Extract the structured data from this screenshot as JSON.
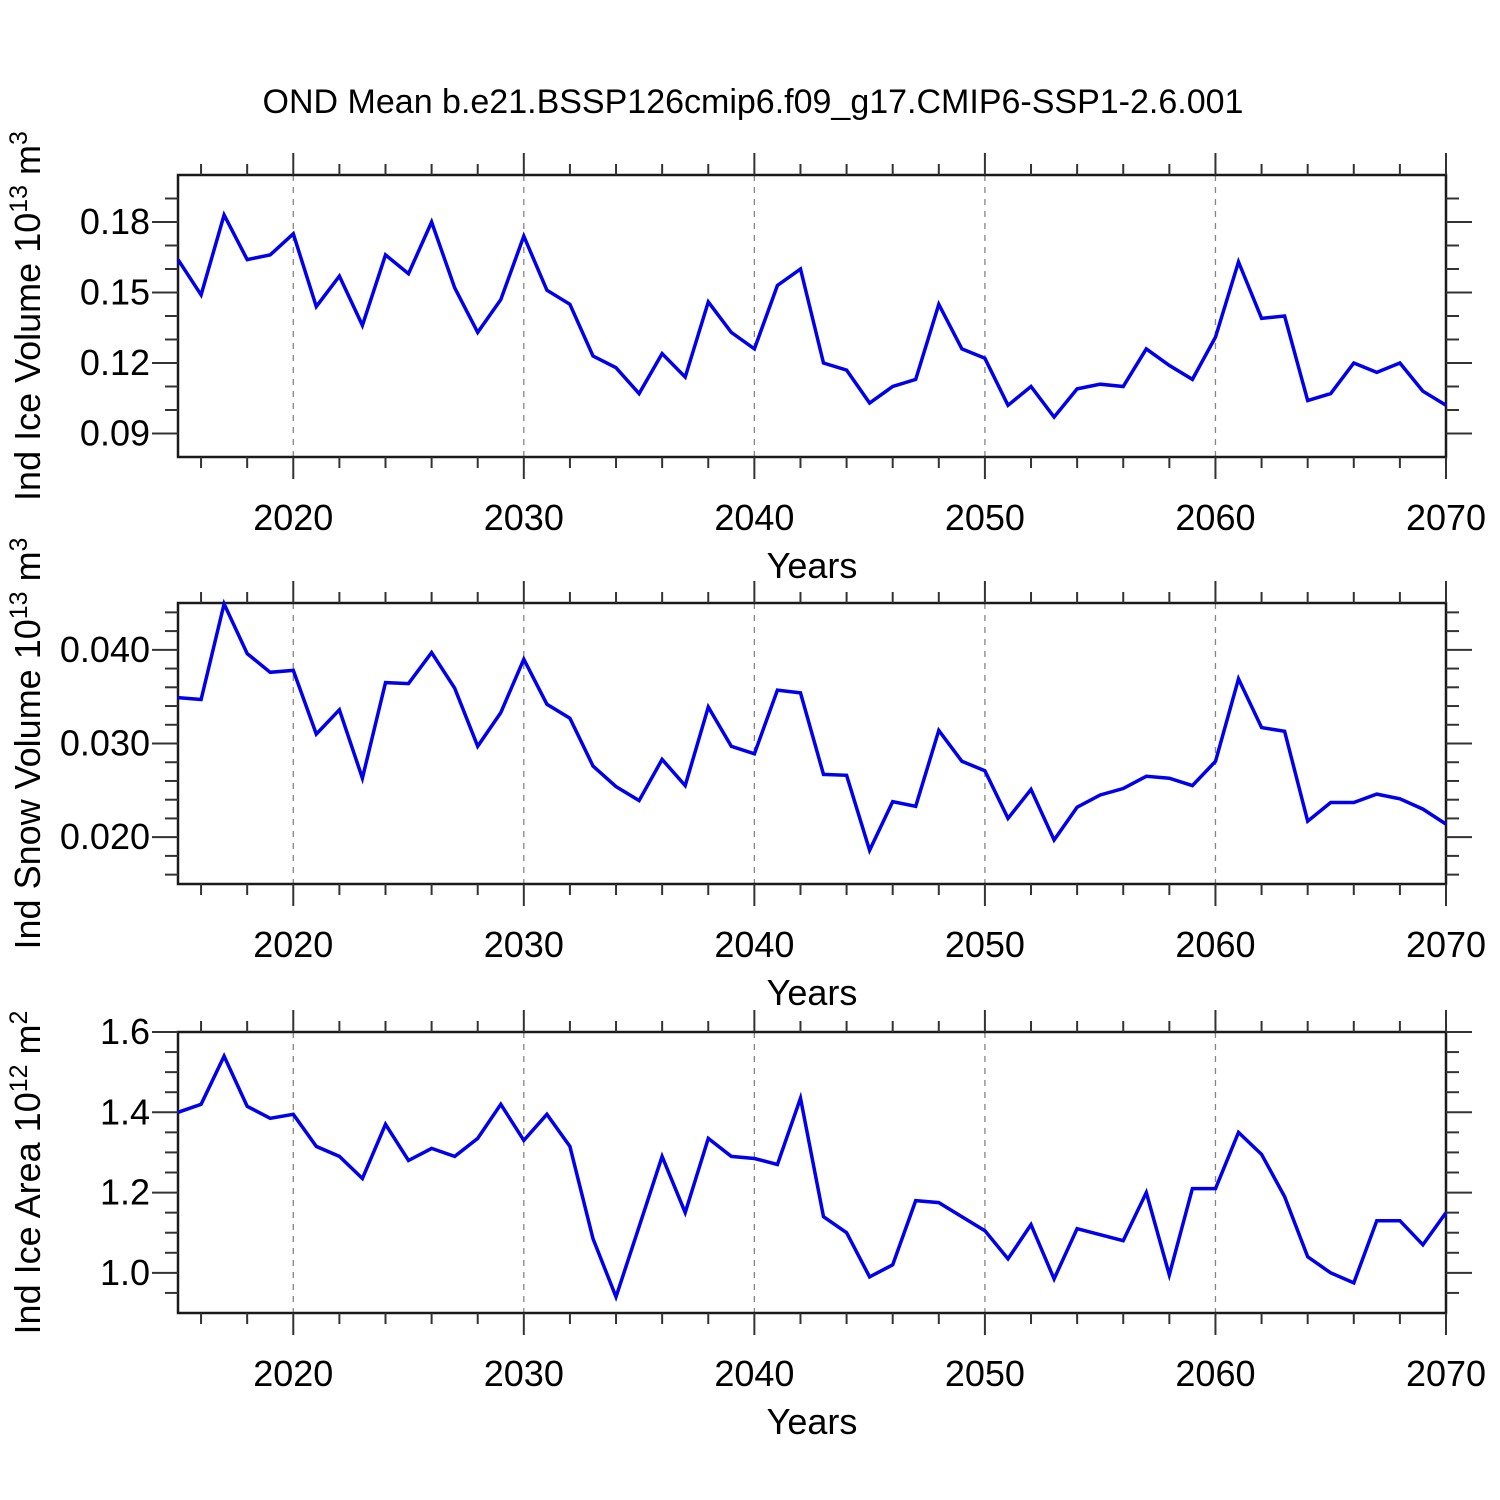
{
  "title": "OND Mean b.e21.BSSP126cmip6.f09_g17.CMIP6-SSP1-2.6.001",
  "colors": {
    "line": "#0000ee",
    "frame": "#1a1a1a",
    "grid": "#858585",
    "text": "#000000",
    "background": "#ffffff"
  },
  "x_axis": {
    "label": "Years",
    "range": [
      2015,
      2070
    ],
    "major_ticks": [
      2020,
      2030,
      2040,
      2050,
      2060,
      2070
    ],
    "major_tick_labels": [
      "2020",
      "2030",
      "2040",
      "2050",
      "2060",
      "2070"
    ],
    "minor_tick_step": 2,
    "gridlines": [
      2020,
      2030,
      2040,
      2050,
      2060
    ]
  },
  "years": [
    2015,
    2016,
    2017,
    2018,
    2019,
    2020,
    2021,
    2022,
    2023,
    2024,
    2025,
    2026,
    2027,
    2028,
    2029,
    2030,
    2031,
    2032,
    2033,
    2034,
    2035,
    2036,
    2037,
    2038,
    2039,
    2040,
    2041,
    2042,
    2043,
    2044,
    2045,
    2046,
    2047,
    2048,
    2049,
    2050,
    2051,
    2052,
    2053,
    2054,
    2055,
    2056,
    2057,
    2058,
    2059,
    2060,
    2061,
    2062,
    2063,
    2064,
    2065,
    2066,
    2067,
    2068,
    2069,
    2070
  ],
  "chart_data": [
    {
      "type": "line",
      "name": "ind-ice-volume",
      "ylabel": "Ind Ice Volume 10^13 m^3",
      "ylabel_parts": [
        {
          "text": "Ind Ice Volume 10"
        },
        {
          "text": "13",
          "sup": true
        },
        {
          "text": " m"
        },
        {
          "text": "3",
          "sup": true
        }
      ],
      "xlabel": "Years",
      "ylim": [
        0.08,
        0.2
      ],
      "ytick_values": [
        0.09,
        0.12,
        0.15,
        0.18
      ],
      "ytick_labels": [
        "0.09",
        "0.12",
        "0.15",
        "0.18"
      ],
      "yminor_step": 0.01,
      "grid": "x-dashed",
      "legend": "none",
      "values": [
        0.164,
        0.149,
        0.183,
        0.164,
        0.166,
        0.175,
        0.144,
        0.157,
        0.136,
        0.166,
        0.158,
        0.18,
        0.152,
        0.133,
        0.147,
        0.174,
        0.151,
        0.145,
        0.123,
        0.118,
        0.107,
        0.124,
        0.114,
        0.146,
        0.133,
        0.126,
        0.153,
        0.16,
        0.12,
        0.117,
        0.103,
        0.11,
        0.113,
        0.145,
        0.126,
        0.122,
        0.102,
        0.11,
        0.097,
        0.109,
        0.111,
        0.11,
        0.126,
        0.119,
        0.113,
        0.131,
        0.163,
        0.139,
        0.14,
        0.104,
        0.107,
        0.12,
        0.116,
        0.12,
        0.108,
        0.102
      ]
    },
    {
      "type": "line",
      "name": "ind-snow-volume",
      "ylabel": "Ind Snow Volume 10^13 m^3",
      "ylabel_parts": [
        {
          "text": "Ind Snow Volume 10"
        },
        {
          "text": "13",
          "sup": true
        },
        {
          "text": " m"
        },
        {
          "text": "3",
          "sup": true
        }
      ],
      "xlabel": "Years",
      "ylim": [
        0.015,
        0.045
      ],
      "ytick_values": [
        0.02,
        0.03,
        0.04
      ],
      "ytick_labels": [
        "0.020",
        "0.030",
        "0.040"
      ],
      "yminor_step": 0.002,
      "grid": "x-dashed",
      "legend": "none",
      "values": [
        0.0349,
        0.0347,
        0.0449,
        0.0396,
        0.0376,
        0.0378,
        0.031,
        0.0336,
        0.0263,
        0.0365,
        0.0364,
        0.0397,
        0.0359,
        0.0297,
        0.0333,
        0.039,
        0.0342,
        0.0327,
        0.0276,
        0.0254,
        0.0239,
        0.0283,
        0.0255,
        0.0339,
        0.0297,
        0.0289,
        0.0357,
        0.0354,
        0.0267,
        0.0266,
        0.0186,
        0.0238,
        0.0233,
        0.0314,
        0.0281,
        0.0271,
        0.022,
        0.0251,
        0.0197,
        0.0232,
        0.0245,
        0.0252,
        0.0265,
        0.0263,
        0.0255,
        0.0281,
        0.0369,
        0.0317,
        0.0313,
        0.0217,
        0.0237,
        0.0237,
        0.0246,
        0.0241,
        0.023,
        0.0214
      ]
    },
    {
      "type": "line",
      "name": "ind-ice-area",
      "ylabel": "Ind Ice Area 10^12 m^2",
      "ylabel_parts": [
        {
          "text": "Ind Ice Area 10"
        },
        {
          "text": "12",
          "sup": true
        },
        {
          "text": " m"
        },
        {
          "text": "2",
          "sup": true
        }
      ],
      "xlabel": "Years",
      "ylim": [
        0.9,
        1.6
      ],
      "ytick_values": [
        1.0,
        1.2,
        1.4,
        1.6
      ],
      "ytick_labels": [
        "1.0",
        "1.2",
        "1.4",
        "1.6"
      ],
      "yminor_step": 0.05,
      "grid": "x-dashed",
      "legend": "none",
      "values": [
        1.4,
        1.42,
        1.54,
        1.415,
        1.385,
        1.395,
        1.315,
        1.29,
        1.235,
        1.37,
        1.28,
        1.31,
        1.29,
        1.335,
        1.42,
        1.33,
        1.395,
        1.315,
        1.085,
        0.94,
        1.115,
        1.29,
        1.15,
        1.335,
        1.29,
        1.285,
        1.27,
        1.435,
        1.14,
        1.1,
        0.99,
        1.02,
        1.18,
        1.175,
        1.14,
        1.105,
        1.035,
        1.12,
        0.985,
        1.11,
        1.095,
        1.08,
        1.2,
        0.995,
        1.21,
        1.21,
        1.35,
        1.295,
        1.19,
        1.04,
        1.0,
        0.975,
        1.13,
        1.13,
        1.07,
        1.15
      ]
    }
  ]
}
